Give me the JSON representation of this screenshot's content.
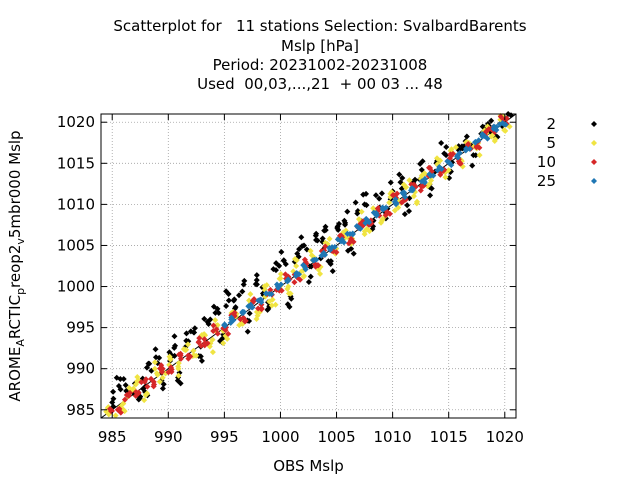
{
  "chart_data": {
    "type": "scatter",
    "title_lines": [
      "Scatterplot for   11 stations Selection: SvalbardBarents",
      "Mslp [hPa]",
      "Period: 20231002-20231008",
      "Used  00,03,...,21  + 00 03 ... 48"
    ],
    "xlabel": "OBS Mslp",
    "ylabel_parts": {
      "main": "AROME",
      "sub1": "A",
      "mid1": "RCTIC",
      "sub2": "p",
      "mid2": "reop2",
      "sub3": "v",
      "tail": "5mbr000 Mslp"
    },
    "xlim": [
      984,
      1021
    ],
    "ylim": [
      984,
      1021
    ],
    "xticks": [
      985,
      990,
      995,
      1000,
      1005,
      1010,
      1015,
      1020
    ],
    "yticks": [
      985,
      990,
      995,
      1000,
      1005,
      1010,
      1015,
      1020
    ],
    "grid": true,
    "diagonal": true,
    "legend_position": "outside-right",
    "series": [
      {
        "name": "2",
        "color": "#000000",
        "spread": 1.3,
        "points": [
          [
            985.0,
            985.9
          ],
          [
            985.6,
            987.9
          ],
          [
            986.2,
            988.0
          ],
          [
            986.8,
            987.3
          ],
          [
            987.5,
            986.6
          ],
          [
            988.3,
            990.6
          ],
          [
            988.9,
            991.4
          ],
          [
            989.4,
            988.6
          ],
          [
            990.1,
            992.0
          ],
          [
            990.6,
            992.8
          ],
          [
            991.0,
            989.5
          ],
          [
            991.6,
            993.4
          ],
          [
            992.3,
            994.4
          ],
          [
            992.9,
            991.5
          ],
          [
            993.5,
            995.7
          ],
          [
            994.2,
            996.8
          ],
          [
            994.8,
            993.2
          ],
          [
            995.4,
            998.3
          ],
          [
            996.0,
            997.5
          ],
          [
            996.6,
            999.4
          ],
          [
            997.2,
            995.8
          ],
          [
            997.8,
            1000.3
          ],
          [
            998.4,
            999.9
          ],
          [
            999.0,
            997.6
          ],
          [
            999.6,
            1002.0
          ],
          [
            1000.3,
            1003.2
          ],
          [
            1000.9,
            998.8
          ],
          [
            1001.5,
            1004.0
          ],
          [
            1002.1,
            1005.0
          ],
          [
            1002.7,
            1001.2
          ],
          [
            1003.3,
            1005.6
          ],
          [
            1003.9,
            1006.8
          ],
          [
            1004.5,
            1003.1
          ],
          [
            1005.1,
            1007.3
          ],
          [
            1005.7,
            1008.0
          ],
          [
            1006.3,
            1004.6
          ],
          [
            1006.9,
            1009.2
          ],
          [
            1007.5,
            1010.0
          ],
          [
            1008.2,
            1007.0
          ],
          [
            1008.8,
            1010.7
          ],
          [
            1009.4,
            1008.3
          ],
          [
            1010.0,
            1011.6
          ],
          [
            1010.7,
            1012.7
          ],
          [
            1011.3,
            1009.9
          ],
          [
            1012.0,
            1013.0
          ],
          [
            1012.6,
            1014.2
          ],
          [
            1013.3,
            1012.1
          ],
          [
            1013.9,
            1015.0
          ],
          [
            1014.6,
            1016.2
          ],
          [
            1015.2,
            1014.0
          ],
          [
            1015.9,
            1016.6
          ],
          [
            1016.5,
            1017.7
          ],
          [
            1017.2,
            1016.0
          ],
          [
            1017.9,
            1018.6
          ],
          [
            1018.5,
            1019.8
          ],
          [
            1019.1,
            1018.3
          ],
          [
            1019.8,
            1020.7
          ],
          [
            1020.3,
            1021.0
          ],
          [
            988.0,
            987.9
          ],
          [
            1003.8,
            1004.5
          ]
        ]
      },
      {
        "name": "5",
        "color": "#f0e442",
        "spread": 0.9,
        "points": [
          [
            984.6,
            985.2
          ],
          [
            985.3,
            984.3
          ],
          [
            986.0,
            985.0
          ],
          [
            986.7,
            987.3
          ],
          [
            987.4,
            988.5
          ],
          [
            988.1,
            987.0
          ],
          [
            988.8,
            990.0
          ],
          [
            989.5,
            988.9
          ],
          [
            990.2,
            991.2
          ],
          [
            990.9,
            990.0
          ],
          [
            991.6,
            992.3
          ],
          [
            992.3,
            991.6
          ],
          [
            993.0,
            994.1
          ],
          [
            993.7,
            992.7
          ],
          [
            994.4,
            995.3
          ],
          [
            995.1,
            994.0
          ],
          [
            995.8,
            996.9
          ],
          [
            996.5,
            995.5
          ],
          [
            997.2,
            998.3
          ],
          [
            997.9,
            996.9
          ],
          [
            998.6,
            999.6
          ],
          [
            999.3,
            998.4
          ],
          [
            1000.0,
            1001.0
          ],
          [
            1000.7,
            1000.0
          ],
          [
            1001.4,
            1002.5
          ],
          [
            1002.1,
            1001.3
          ],
          [
            1002.8,
            1003.8
          ],
          [
            1003.5,
            1002.4
          ],
          [
            1004.2,
            1005.2
          ],
          [
            1004.9,
            1004.0
          ],
          [
            1005.6,
            1006.6
          ],
          [
            1006.3,
            1005.2
          ],
          [
            1007.0,
            1008.2
          ],
          [
            1007.7,
            1007.0
          ],
          [
            1008.4,
            1009.3
          ],
          [
            1009.1,
            1008.2
          ],
          [
            1009.8,
            1010.9
          ],
          [
            1010.5,
            1009.6
          ],
          [
            1011.2,
            1012.1
          ],
          [
            1011.9,
            1011.0
          ],
          [
            1012.6,
            1013.5
          ],
          [
            1013.3,
            1012.5
          ],
          [
            1014.0,
            1014.9
          ],
          [
            1014.7,
            1013.9
          ],
          [
            1015.4,
            1016.2
          ],
          [
            1016.1,
            1015.4
          ],
          [
            1016.8,
            1017.5
          ],
          [
            1017.5,
            1016.8
          ],
          [
            1018.2,
            1019.0
          ],
          [
            1018.9,
            1018.4
          ],
          [
            1019.6,
            1020.3
          ],
          [
            1020.2,
            1019.7
          ]
        ]
      },
      {
        "name": "10",
        "color": "#d62728",
        "spread": 0.6,
        "points": [
          [
            984.8,
            985.1
          ],
          [
            985.5,
            985.0
          ],
          [
            986.3,
            986.8
          ],
          [
            987.1,
            986.7
          ],
          [
            987.9,
            988.4
          ],
          [
            988.7,
            988.4
          ],
          [
            989.5,
            990.0
          ],
          [
            990.3,
            989.9
          ],
          [
            991.1,
            991.6
          ],
          [
            991.9,
            991.5
          ],
          [
            992.7,
            993.2
          ],
          [
            993.5,
            993.1
          ],
          [
            994.3,
            994.8
          ],
          [
            995.1,
            994.7
          ],
          [
            995.9,
            996.4
          ],
          [
            996.7,
            996.2
          ],
          [
            997.5,
            998.0
          ],
          [
            998.3,
            997.8
          ],
          [
            999.1,
            999.6
          ],
          [
            999.9,
            999.5
          ],
          [
            1000.7,
            1001.2
          ],
          [
            1001.5,
            1001.1
          ],
          [
            1002.3,
            1002.8
          ],
          [
            1003.1,
            1002.7
          ],
          [
            1003.9,
            1004.4
          ],
          [
            1004.7,
            1004.3
          ],
          [
            1005.5,
            1006.0
          ],
          [
            1006.3,
            1005.8
          ],
          [
            1007.1,
            1007.6
          ],
          [
            1007.9,
            1007.5
          ],
          [
            1008.7,
            1009.2
          ],
          [
            1009.5,
            1009.1
          ],
          [
            1010.3,
            1010.8
          ],
          [
            1011.1,
            1010.7
          ],
          [
            1011.9,
            1012.4
          ],
          [
            1012.7,
            1012.2
          ],
          [
            1013.5,
            1014.0
          ],
          [
            1014.3,
            1013.9
          ],
          [
            1015.1,
            1015.6
          ],
          [
            1015.9,
            1015.5
          ],
          [
            1016.7,
            1017.2
          ],
          [
            1017.5,
            1017.1
          ],
          [
            1018.3,
            1018.8
          ],
          [
            1019.1,
            1018.8
          ],
          [
            1019.9,
            1020.3
          ]
        ]
      },
      {
        "name": "25",
        "color": "#1f77b4",
        "spread": 0.35,
        "points": [
          [
            995.0,
            995.3
          ],
          [
            995.8,
            995.9
          ],
          [
            996.6,
            996.8
          ],
          [
            997.4,
            997.5
          ],
          [
            998.2,
            998.4
          ],
          [
            999.0,
            999.1
          ],
          [
            999.8,
            1000.0
          ],
          [
            1000.6,
            1000.7
          ],
          [
            1001.4,
            1001.6
          ],
          [
            1002.2,
            1002.3
          ],
          [
            1003.0,
            1003.2
          ],
          [
            1003.8,
            1003.9
          ],
          [
            1004.6,
            1004.8
          ],
          [
            1005.4,
            1005.5
          ],
          [
            1006.2,
            1006.4
          ],
          [
            1007.0,
            1007.1
          ],
          [
            1007.8,
            1008.0
          ],
          [
            1008.6,
            1008.7
          ],
          [
            1009.4,
            1009.6
          ],
          [
            1010.2,
            1010.3
          ],
          [
            1011.0,
            1011.2
          ],
          [
            1011.8,
            1011.9
          ],
          [
            1012.6,
            1012.8
          ],
          [
            1013.4,
            1013.5
          ],
          [
            1014.2,
            1014.4
          ],
          [
            1015.0,
            1015.1
          ],
          [
            1015.8,
            1016.0
          ],
          [
            1016.6,
            1016.7
          ],
          [
            1017.4,
            1017.6
          ],
          [
            1018.2,
            1018.3
          ],
          [
            1019.0,
            1019.2
          ],
          [
            1019.8,
            1019.9
          ]
        ]
      }
    ]
  }
}
